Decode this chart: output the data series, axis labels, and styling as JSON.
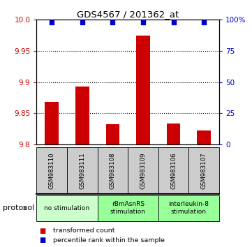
{
  "title": "GDS4567 / 201362_at",
  "samples": [
    "GSM983110",
    "GSM983111",
    "GSM983108",
    "GSM983109",
    "GSM983106",
    "GSM983107"
  ],
  "transformed_counts": [
    9.868,
    9.893,
    9.832,
    9.975,
    9.834,
    9.822
  ],
  "percentile_ranks": [
    98,
    98,
    98,
    98,
    98,
    98
  ],
  "ylim_left": [
    9.8,
    10.0
  ],
  "ylim_right": [
    0,
    100
  ],
  "yticks_left": [
    9.8,
    9.85,
    9.9,
    9.95,
    10.0
  ],
  "yticks_right": [
    0,
    25,
    50,
    75,
    100
  ],
  "bar_color": "#cc0000",
  "dot_color": "#0000cc",
  "protocol_groups": [
    {
      "label": "no stimulation",
      "start": 0,
      "end": 1,
      "color": "#ccffcc"
    },
    {
      "label": "rBmAsnRS\nstimulation",
      "start": 2,
      "end": 3,
      "color": "#99ff99"
    },
    {
      "label": "interleukin-8\nstimulation",
      "start": 4,
      "end": 5,
      "color": "#99ff99"
    }
  ],
  "legend_bar_label": "transformed count",
  "legend_dot_label": "percentile rank within the sample",
  "protocol_label": "protocol",
  "sample_box_color": "#cccccc"
}
